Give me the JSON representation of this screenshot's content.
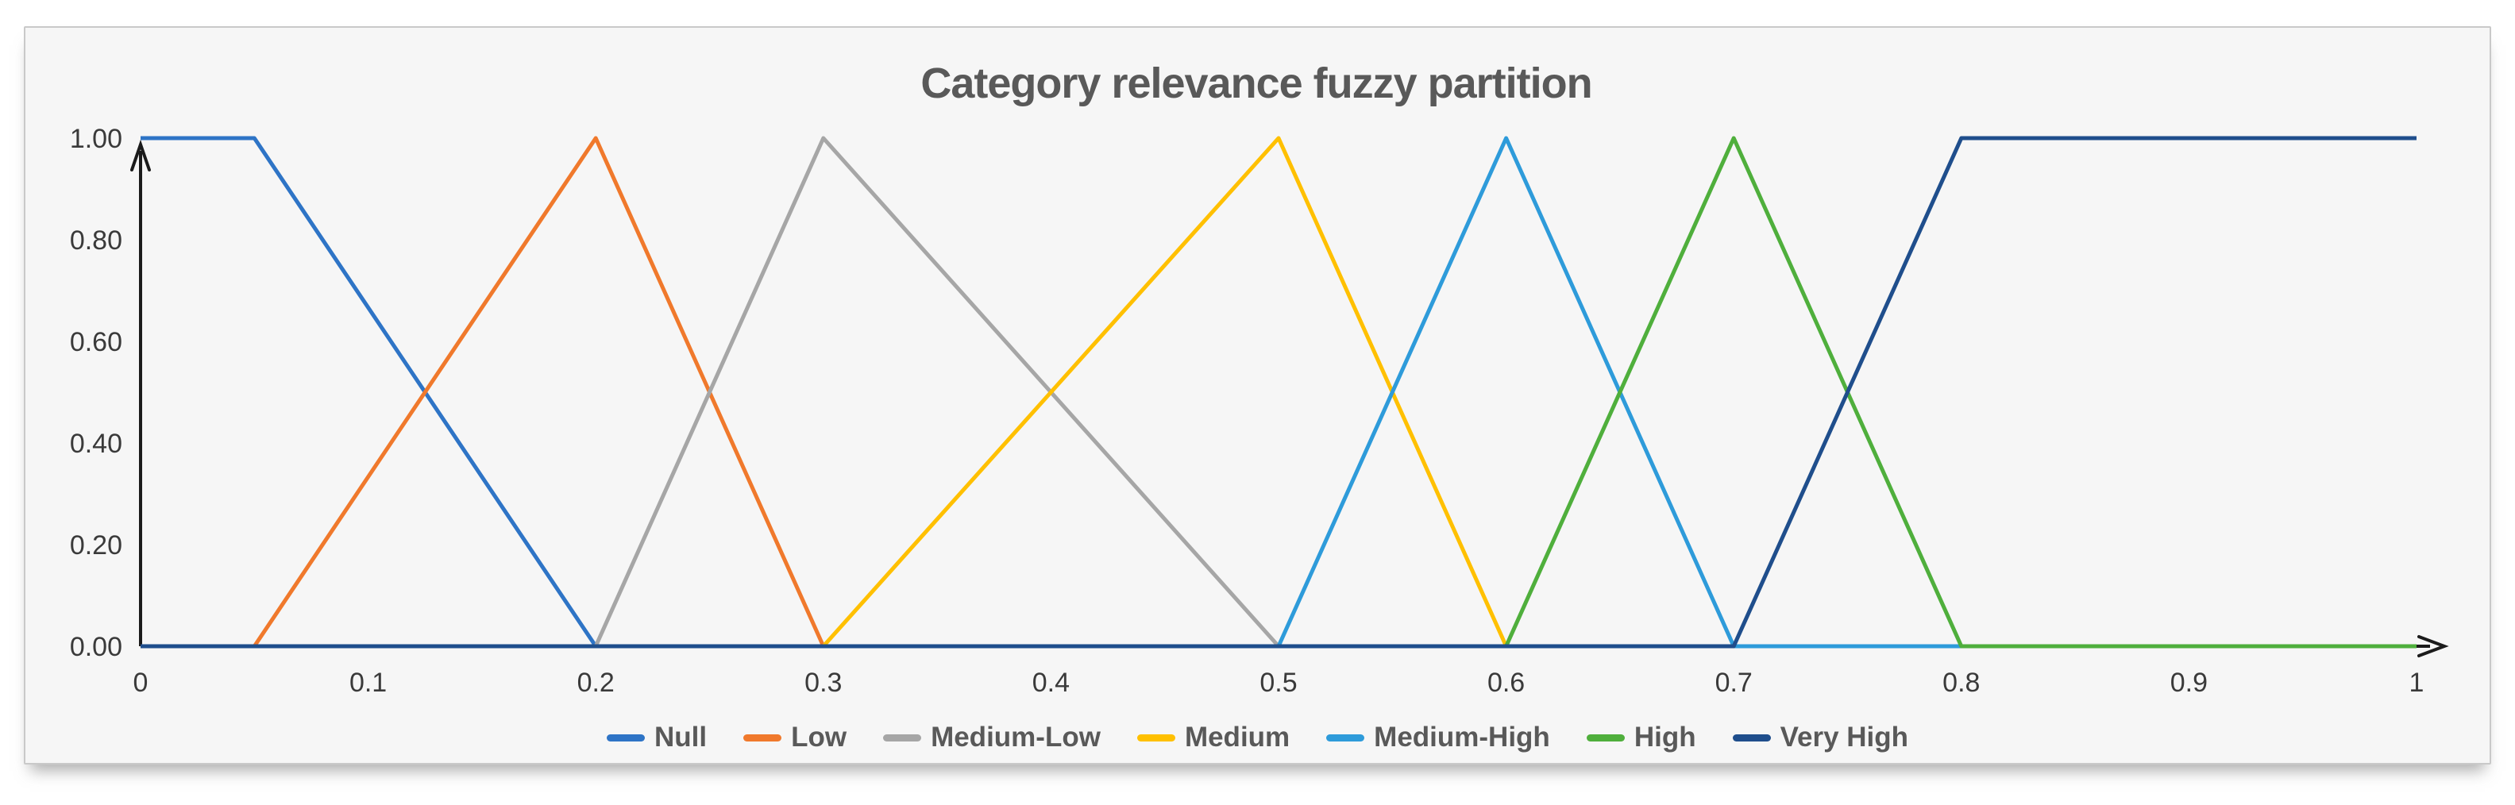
{
  "chart": {
    "background": "#F6F6F6",
    "border_color": "#C9C9C9",
    "axis_color": "#1b1b1b",
    "tick_label_color": "#3a3a3a",
    "title_color": "#595959"
  },
  "chart_data": {
    "type": "line",
    "title": "Category relevance fuzzy partition",
    "xlabel": "",
    "ylabel": "",
    "xlim": [
      0,
      1
    ],
    "ylim": [
      0,
      1
    ],
    "grid": false,
    "legend_position": "bottom",
    "x_tick_values": [
      0,
      0.1,
      0.2,
      0.3,
      0.4,
      0.5,
      0.6,
      0.7,
      0.8,
      0.9,
      1
    ],
    "x_ticks": [
      "0",
      "0.1",
      "0.2",
      "0.3",
      "0.4",
      "0.5",
      "0.6",
      "0.7",
      "0.8",
      "0.9",
      "1"
    ],
    "y_tick_values": [
      0,
      0.2,
      0.4,
      0.6,
      0.8,
      1
    ],
    "y_ticks": [
      "0.00",
      "0.20",
      "0.40",
      "0.60",
      "0.80",
      "1.00"
    ],
    "series": [
      {
        "name": "Null",
        "color": "#2E74C6",
        "points": [
          [
            0,
            1
          ],
          [
            0.05,
            1
          ],
          [
            0.2,
            0
          ],
          [
            1,
            0
          ]
        ]
      },
      {
        "name": "Low",
        "color": "#F0792C",
        "points": [
          [
            0,
            0
          ],
          [
            0.05,
            0
          ],
          [
            0.2,
            1
          ],
          [
            0.3,
            0
          ],
          [
            1,
            0
          ]
        ]
      },
      {
        "name": "Medium-Low",
        "color": "#A6A6A6",
        "points": [
          [
            0,
            0
          ],
          [
            0.2,
            0
          ],
          [
            0.3,
            1
          ],
          [
            0.5,
            0
          ],
          [
            1,
            0
          ]
        ]
      },
      {
        "name": "Medium",
        "color": "#FFC000",
        "points": [
          [
            0,
            0
          ],
          [
            0.3,
            0
          ],
          [
            0.5,
            1
          ],
          [
            0.6,
            0
          ],
          [
            1,
            0
          ]
        ]
      },
      {
        "name": "Medium-High",
        "color": "#2E9BDA",
        "points": [
          [
            0,
            0
          ],
          [
            0.5,
            0
          ],
          [
            0.6,
            1
          ],
          [
            0.7,
            0
          ],
          [
            1,
            0
          ]
        ]
      },
      {
        "name": "High",
        "color": "#4FAF3C",
        "points": [
          [
            0,
            0
          ],
          [
            0.6,
            0
          ],
          [
            0.7,
            1
          ],
          [
            0.8,
            0
          ],
          [
            1,
            0
          ]
        ]
      },
      {
        "name": "Very High",
        "color": "#1F4E8C",
        "points": [
          [
            0,
            0
          ],
          [
            0.7,
            0
          ],
          [
            0.8,
            1
          ],
          [
            1,
            1
          ]
        ]
      }
    ]
  }
}
